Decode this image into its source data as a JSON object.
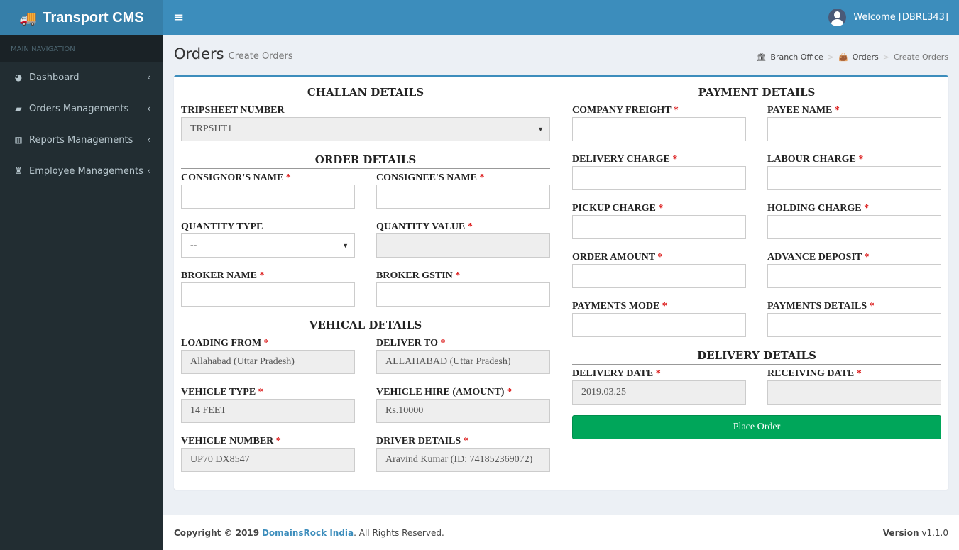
{
  "app": {
    "title": "Transport CMS",
    "welcome": "Welcome [DBRL343]"
  },
  "sidebar": {
    "header": "MAIN NAVIGATION",
    "items": [
      {
        "label": "Dashboard",
        "icon": "dashboard-icon",
        "glyph": "◕"
      },
      {
        "label": "Orders Managements",
        "icon": "shopping-bag-icon",
        "glyph": "▰"
      },
      {
        "label": "Reports Managements",
        "icon": "bar-chart-icon",
        "glyph": "▥"
      },
      {
        "label": "Employee Managements",
        "icon": "user-secret-icon",
        "glyph": "♜"
      }
    ]
  },
  "page": {
    "title": "Orders",
    "subtitle": "Create Orders"
  },
  "breadcrumb": {
    "home": "Branch Office",
    "section": "Orders",
    "current": "Create Orders"
  },
  "sections": {
    "challan": "CHALLAN DETAILS",
    "order": "ORDER DETAILS",
    "vehicle": "VEHICAL DETAILS",
    "payment": "PAYMENT DETAILS",
    "delivery": "DELIVERY DETAILS"
  },
  "fields": [
    {
      "id": "tripsheet",
      "label": "TRIPSHEET NUMBER",
      "required": false,
      "value": "TRPSHT1",
      "type": "select",
      "readonly": true
    },
    {
      "id": "consignor",
      "label": "CONSIGNOR'S NAME",
      "required": true,
      "value": ""
    },
    {
      "id": "consignee",
      "label": "CONSIGNEE'S NAME",
      "required": true,
      "value": ""
    },
    {
      "id": "quantity-type",
      "label": "QUANTITY TYPE",
      "required": false,
      "value": "--",
      "type": "select"
    },
    {
      "id": "quantity-value",
      "label": "QUANTITY VALUE",
      "required": true,
      "value": "",
      "readonly": true
    },
    {
      "id": "broker-name",
      "label": "BROKER NAME",
      "required": true,
      "value": ""
    },
    {
      "id": "broker-gstin",
      "label": "BROKER GSTIN",
      "required": true,
      "value": ""
    },
    {
      "id": "loading-from",
      "label": "LOADING FROM",
      "required": true,
      "value": "Allahabad (Uttar Pradesh)",
      "readonly": true
    },
    {
      "id": "deliver-to",
      "label": "DELIVER TO",
      "required": true,
      "value": "ALLAHABAD (Uttar Pradesh)",
      "readonly": true
    },
    {
      "id": "vehicle-type",
      "label": "VEHICLE TYPE",
      "required": true,
      "value": "14 FEET",
      "readonly": true
    },
    {
      "id": "vehicle-hire",
      "label": "VEHICLE HIRE (AMOUNT)",
      "required": true,
      "value": "Rs.10000",
      "readonly": true
    },
    {
      "id": "vehicle-number",
      "label": "VEHICLE NUMBER",
      "required": true,
      "value": "UP70 DX8547",
      "readonly": true
    },
    {
      "id": "driver-details",
      "label": "DRIVER DETAILS",
      "required": true,
      "value": "Aravind Kumar (ID: 741852369072)",
      "readonly": true
    },
    {
      "id": "company-freight",
      "label": "COMPANY FREIGHT",
      "required": true,
      "value": ""
    },
    {
      "id": "payee-name",
      "label": "PAYEE NAME",
      "required": true,
      "value": ""
    },
    {
      "id": "delivery-charge",
      "label": "DELIVERY CHARGE",
      "required": true,
      "value": ""
    },
    {
      "id": "labour-charge",
      "label": "LABOUR CHARGE",
      "required": true,
      "value": ""
    },
    {
      "id": "pickup-charge",
      "label": "PICKUP CHARGE",
      "required": true,
      "value": ""
    },
    {
      "id": "holding-charge",
      "label": "HOLDING CHARGE",
      "required": true,
      "value": ""
    },
    {
      "id": "order-amount",
      "label": "ORDER AMOUNT",
      "required": true,
      "value": ""
    },
    {
      "id": "advance-deposit",
      "label": "ADVANCE DEPOSIT",
      "required": true,
      "value": ""
    },
    {
      "id": "payments-mode",
      "label": "PAYMENTS MODE",
      "required": true,
      "value": ""
    },
    {
      "id": "payments-details",
      "label": "PAYMENTS DETAILS",
      "required": true,
      "value": ""
    },
    {
      "id": "delivery-date",
      "label": "DELIVERY DATE",
      "required": true,
      "value": "2019.03.25",
      "readonly": true
    },
    {
      "id": "receiving-date",
      "label": "RECEIVING DATE",
      "required": true,
      "value": "",
      "readonly": true
    }
  ],
  "actions": {
    "place_order": "Place Order"
  },
  "footer": {
    "copyright": "Copyright © 2019",
    "company": "DomainsRock India",
    "rights": ". All Rights Reserved.",
    "version_label": "Version",
    "version": "v1.1.0"
  },
  "colors": {
    "primary": "#3c8dbc",
    "sidebar": "#222d32",
    "success": "#00a65a",
    "required": "#dd2222"
  }
}
